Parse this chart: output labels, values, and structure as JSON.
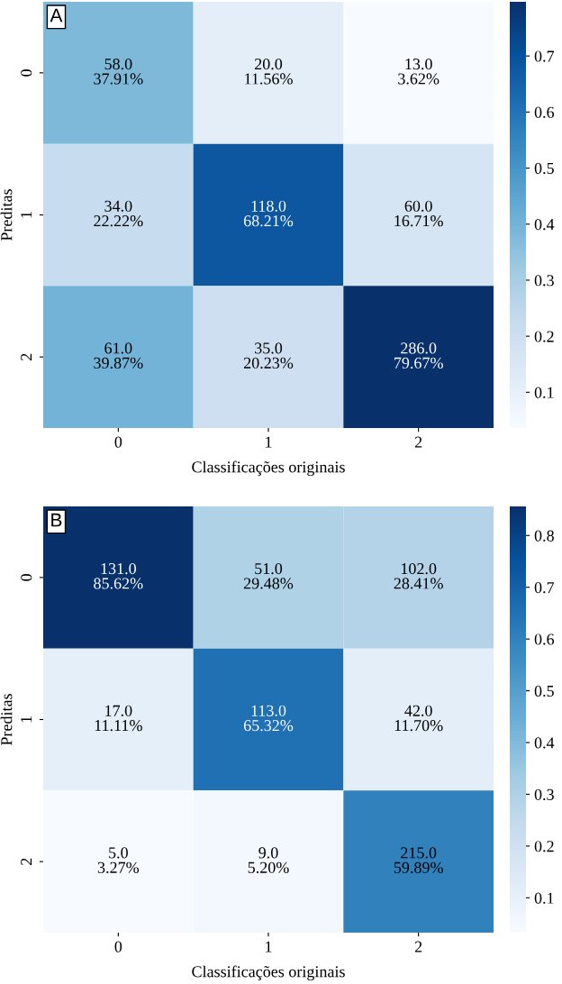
{
  "chart_data": [
    {
      "type": "heatmap",
      "title": "A",
      "xlabel": "Classificações originais",
      "ylabel": "Preditas",
      "categories": [
        "0",
        "1",
        "2"
      ],
      "y_categories": [
        "0",
        "1",
        "2"
      ],
      "cells": [
        [
          0.3791,
          0.1156,
          0.0362
        ],
        [
          0.2222,
          0.6821,
          0.1671
        ],
        [
          0.3987,
          0.2023,
          0.7967
        ]
      ],
      "cell_labels": [
        [
          "58.0\n37.91%",
          "20.0\n11.56%",
          "13.0\n3.62%"
        ],
        [
          "34.0\n22.22%",
          "118.0\n68.21%",
          "60.0\n16.71%"
        ],
        [
          "61.0\n39.87%",
          "35.0\n20.23%",
          "286.0\n79.67%"
        ]
      ],
      "clim": [
        0.0362,
        0.7967
      ],
      "cticks": [
        0.1,
        0.2,
        0.3,
        0.4,
        0.5,
        0.6,
        0.7
      ]
    },
    {
      "type": "heatmap",
      "title": "B",
      "xlabel": "Classificações originais",
      "ylabel": "Preditas",
      "categories": [
        "0",
        "1",
        "2"
      ],
      "y_categories": [
        "0",
        "1",
        "2"
      ],
      "cells": [
        [
          0.8562,
          0.2948,
          0.2841
        ],
        [
          0.1111,
          0.6532,
          0.117
        ],
        [
          0.0327,
          0.052,
          0.5989
        ]
      ],
      "cell_labels": [
        [
          "131.0\n85.62%",
          "51.0\n29.48%",
          "102.0\n28.41%"
        ],
        [
          "17.0\n11.11%",
          "113.0\n65.32%",
          "42.0\n11.70%"
        ],
        [
          "5.0\n3.27%",
          "9.0\n5.20%",
          "215.0\n59.89%"
        ]
      ],
      "clim": [
        0.0327,
        0.8562
      ],
      "cticks": [
        0.1,
        0.2,
        0.3,
        0.4,
        0.5,
        0.6,
        0.7,
        0.8
      ]
    }
  ]
}
